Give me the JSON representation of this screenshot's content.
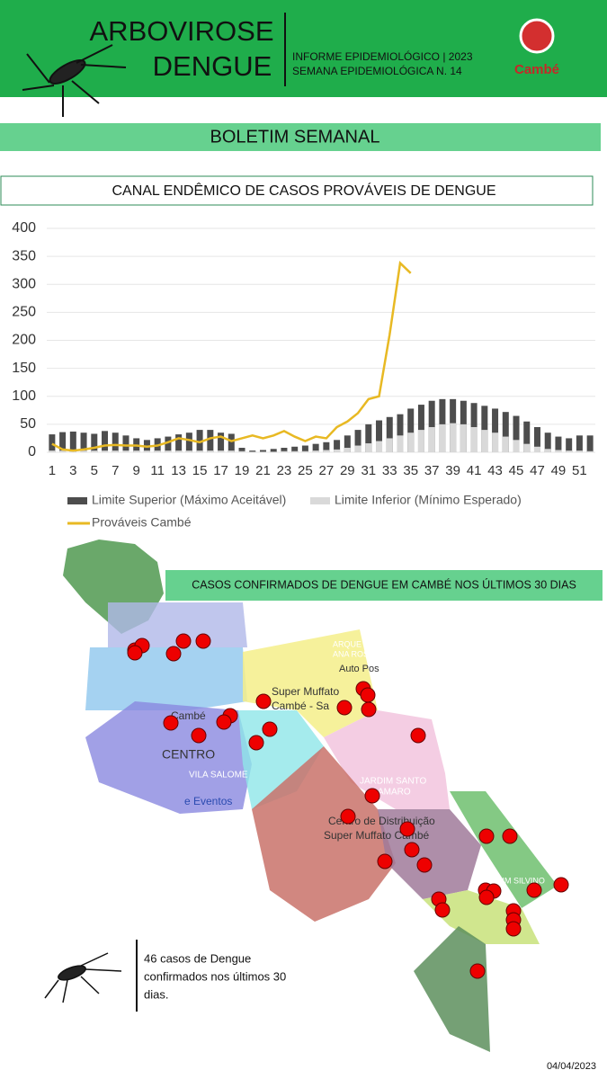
{
  "header": {
    "title_line1": "ARBOVIROSE",
    "title_line2": "DENGUE",
    "info_line1": "INFORME EPIDEMIOLÓGICO | 2023",
    "info_line2": "SEMANA EPIDEMIOLÓGICA  N. 14",
    "logo_text": "Cambé"
  },
  "banner": "BOLETIM SEMANAL",
  "chart_data": {
    "type": "bar",
    "title": "CANAL ENDÊMICO DE CASOS PROVÁVEIS DE DENGUE",
    "categories": [
      1,
      null,
      3,
      null,
      5,
      null,
      7,
      null,
      9,
      null,
      11,
      null,
      13,
      null,
      15,
      null,
      17,
      null,
      19,
      null,
      21,
      null,
      23,
      null,
      25,
      null,
      27,
      null,
      29,
      null,
      31,
      null,
      33,
      null,
      35,
      null,
      37,
      null,
      39,
      null,
      41,
      null,
      43,
      null,
      45,
      null,
      47,
      null,
      49,
      null,
      51,
      null
    ],
    "series": [
      {
        "name": "Limite Superior (Máximo Aceitável)",
        "type": "bar",
        "color": "#4d4d4d",
        "values": [
          32,
          36,
          37,
          35,
          33,
          38,
          35,
          30,
          25,
          22,
          25,
          28,
          32,
          35,
          40,
          40,
          35,
          33,
          8,
          3,
          4,
          6,
          8,
          10,
          12,
          15,
          18,
          22,
          30,
          40,
          50,
          57,
          63,
          68,
          78,
          85,
          92,
          95,
          95,
          92,
          88,
          83,
          78,
          72,
          65,
          55,
          45,
          35,
          28,
          25,
          30,
          30
        ]
      },
      {
        "name": "Limite Inferior (Mínimo Esperado)",
        "type": "bar",
        "color": "#d9d9d9",
        "values": [
          3,
          3,
          3,
          3,
          3,
          3,
          3,
          3,
          3,
          3,
          3,
          3,
          3,
          3,
          3,
          3,
          3,
          3,
          2,
          1,
          1,
          1,
          2,
          2,
          2,
          3,
          4,
          5,
          8,
          12,
          16,
          20,
          25,
          30,
          35,
          40,
          45,
          50,
          52,
          50,
          45,
          40,
          35,
          28,
          22,
          15,
          10,
          6,
          4,
          3,
          3,
          2
        ]
      },
      {
        "name": "Prováveis Cambé",
        "type": "line",
        "color": "#e8b923",
        "values": [
          15,
          5,
          3,
          5,
          8,
          12,
          13,
          12,
          12,
          10,
          12,
          18,
          25,
          22,
          18,
          25,
          28,
          20,
          25,
          30,
          25,
          30,
          38,
          28,
          20,
          28,
          25,
          45,
          55,
          70,
          95,
          100,
          210,
          338,
          320,
          null,
          null,
          null,
          null,
          null,
          null,
          null,
          null,
          null,
          null,
          null,
          null,
          null,
          null,
          null,
          null,
          null
        ]
      }
    ],
    "ylim": [
      0,
      400
    ],
    "yticks": [
      0,
      50,
      100,
      150,
      200,
      250,
      300,
      350,
      400
    ],
    "grid": true
  },
  "map": {
    "title": "CASOS CONFIRMADOS DE DENGUE EM CAMBÉ NOS ÚLTIMOS 30 DIAS",
    "labels": [
      "Cambé",
      "CENTRO",
      "VILA SALOME",
      "e Eventos",
      "Super Muffato",
      "Cambé - Sa",
      "JARDIM SANTO",
      "AMARO",
      "Centro de Distribuição",
      "Super Muffato Cambé",
      "JARDIM SILVINO",
      "Auto Pos",
      "ARQUE RE",
      "ANA ROSA"
    ]
  },
  "note": [
    "46 casos de Dengue",
    "confirmados nos últimos 30",
    "dias."
  ],
  "date": "04/04/2023"
}
